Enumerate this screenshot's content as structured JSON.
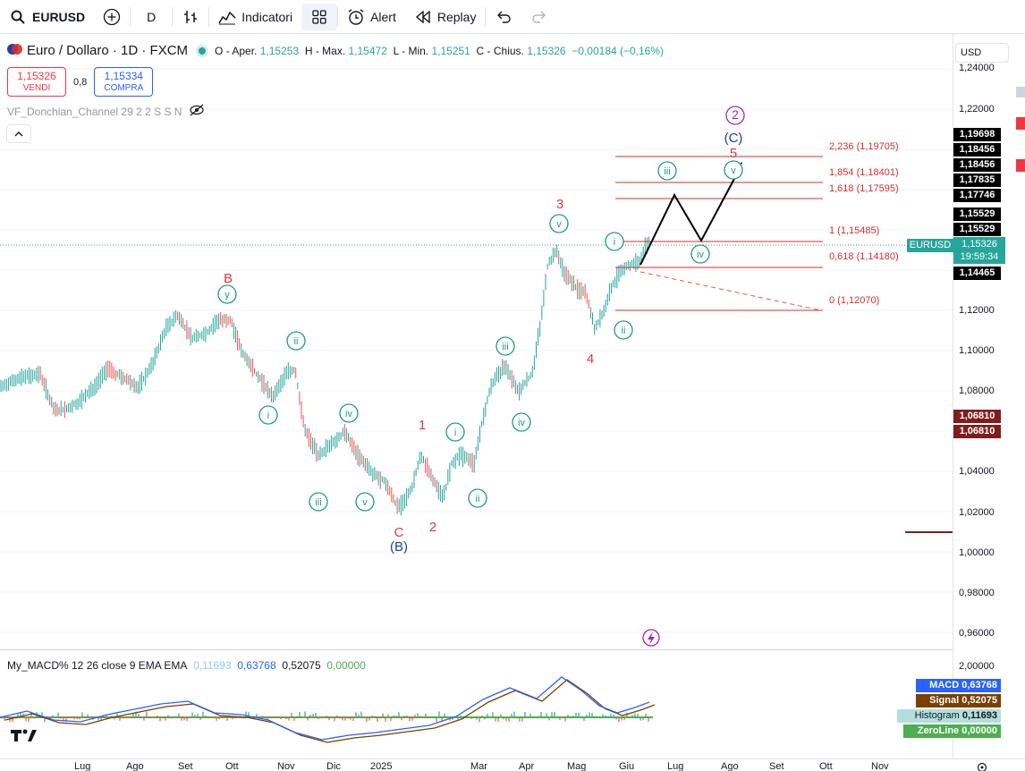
{
  "toolbar": {
    "symbol": "EURUSD",
    "interval": "D",
    "indicators_label": "Indicatori",
    "alert_label": "Alert",
    "replay_label": "Replay"
  },
  "legend": {
    "title": "Euro / Dollaro · 1D · FXCM",
    "open_label": "O - Aper.",
    "open_value": "1,15253",
    "high_label": "H - Max.",
    "high_value": "1,15472",
    "low_label": "L - Min.",
    "low_value": "1,15251",
    "close_label": "C - Chius.",
    "close_value": "1,15326",
    "change": "−0,00184 (−0,16%)"
  },
  "trade": {
    "sell_price": "1,15326",
    "sell_label": "VENDI",
    "spread": "0,8",
    "buy_price": "1,15334",
    "buy_label": "COMPRA"
  },
  "indicator_row": "VF_Donchian_Channel 29 2 2 S S N",
  "currency_button": "USD",
  "price_axis": [
    "1,24000",
    "1,22000",
    "1,12000",
    "1,10000",
    "1,08000",
    "1,04000",
    "1,02000",
    "1,00000",
    "0,98000",
    "0,96000"
  ],
  "price_badges": [
    "1,19698",
    "1,18456",
    "1,18456",
    "1,17835",
    "1,17746",
    "1,15529",
    "1,15529",
    "1,14465",
    "1,06810",
    "1,06810"
  ],
  "current": {
    "symbol_tag": "EURUSD",
    "price": "1,15326",
    "countdown": "19:59:34"
  },
  "fibs": [
    {
      "label": "2,236 (1,19705)"
    },
    {
      "label": "1,854 (1,18401)"
    },
    {
      "label": "1,618 (1,17595)"
    },
    {
      "label": "1 (1,15485)"
    },
    {
      "label": "0,618 (1,14180)"
    },
    {
      "label": "0 (1,12070)"
    }
  ],
  "wave_labels": {
    "B": "B",
    "y": "y",
    "C": "C",
    "B_paren": "(B)",
    "C_paren": "(C)",
    "two_circle": "2",
    "one": "1",
    "two": "2",
    "three": "3",
    "four": "4",
    "five": "5",
    "ii_1": "ii",
    "i_1": "i",
    "iv_1": "iv",
    "iii_1": "iii",
    "v_1": "v",
    "i_2": "i",
    "ii_2": "ii",
    "iii_2": "iii",
    "iv_2": "iv",
    "v_2": "v",
    "i_3": "i",
    "ii_3": "ii",
    "iii_3": "iii",
    "iv_3": "iv",
    "v_3": "v"
  },
  "macd": {
    "legend_name": "My_MACD% 12 26 close 9 EMA EMA",
    "v1": "0,11693",
    "v2": "0,63768",
    "v3": "0,52075",
    "v4": "0,00000",
    "axis_top": "2,00000",
    "badges": [
      {
        "name": "MACD",
        "value": "0,63768",
        "color": "#2962ff"
      },
      {
        "name": "Signal",
        "value": "0,52075",
        "color": "#7b3f00"
      },
      {
        "name": "Histogram",
        "value": "0,11693",
        "color": "#b2dfdb"
      },
      {
        "name": "ZeroLine",
        "value": "0,00000",
        "color": "#4caf50"
      }
    ]
  },
  "time_axis": [
    "Lug",
    "Ago",
    "Set",
    "Ott",
    "Nov",
    "Dic",
    "2025",
    "Mar",
    "Apr",
    "Mag",
    "Giu",
    "Lug",
    "Ago",
    "Set",
    "Ott",
    "Nov"
  ],
  "colors": {
    "up": "#26a69a",
    "down": "#ef5350",
    "wave_green": "#1b9e77",
    "wave_red": "#e53935",
    "wave_blue": "#1e40af",
    "wave_purple": "#9c27b0"
  }
}
